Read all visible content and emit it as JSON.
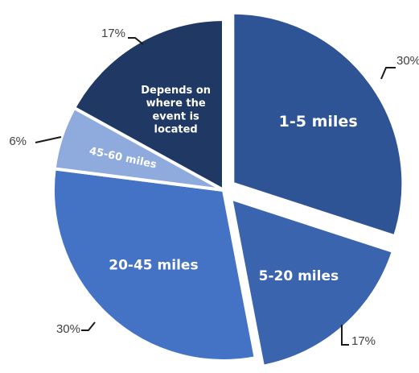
{
  "chart_data": {
    "type": "pie",
    "title": "",
    "slices": [
      {
        "label": "1-5 miles",
        "percent_label": "30%",
        "value": 30,
        "color": "#2f5496"
      },
      {
        "label": "5-20 miles",
        "percent_label": "17%",
        "value": 17,
        "color": "#3a64ae"
      },
      {
        "label": "20-45 miles",
        "percent_label": "30%",
        "value": 30,
        "color": "#4472c4"
      },
      {
        "label": "45-60 miles",
        "percent_label": "6%",
        "value": 6,
        "color": "#8faadc"
      },
      {
        "label": "Depends on where the event is located",
        "label_lines": [
          "Depends on",
          "where the",
          "event is",
          "located"
        ],
        "percent_label": "17%",
        "value": 17,
        "color": "#203864"
      }
    ],
    "exploded": true,
    "legend": "none"
  }
}
